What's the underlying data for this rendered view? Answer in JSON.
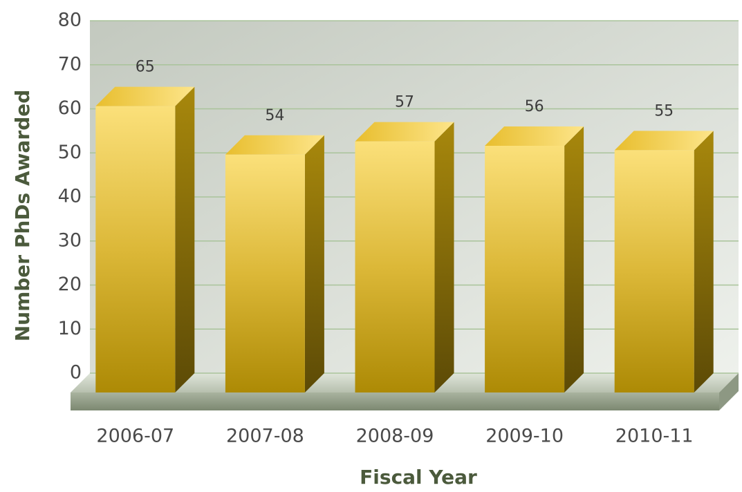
{
  "chart_data": {
    "type": "bar3d",
    "x_label": "Fiscal Year",
    "y_label": "Number PhDs Awarded",
    "categories": [
      "2006-07",
      "2007-08",
      "2008-09",
      "2009-10",
      "2010-11"
    ],
    "values": [
      65,
      54,
      57,
      56,
      55
    ],
    "color": "#d9b21c",
    "ylim": [
      0,
      80
    ],
    "yticks": [
      0,
      10,
      20,
      30,
      40,
      50,
      60,
      70,
      80
    ],
    "grid": true
  }
}
